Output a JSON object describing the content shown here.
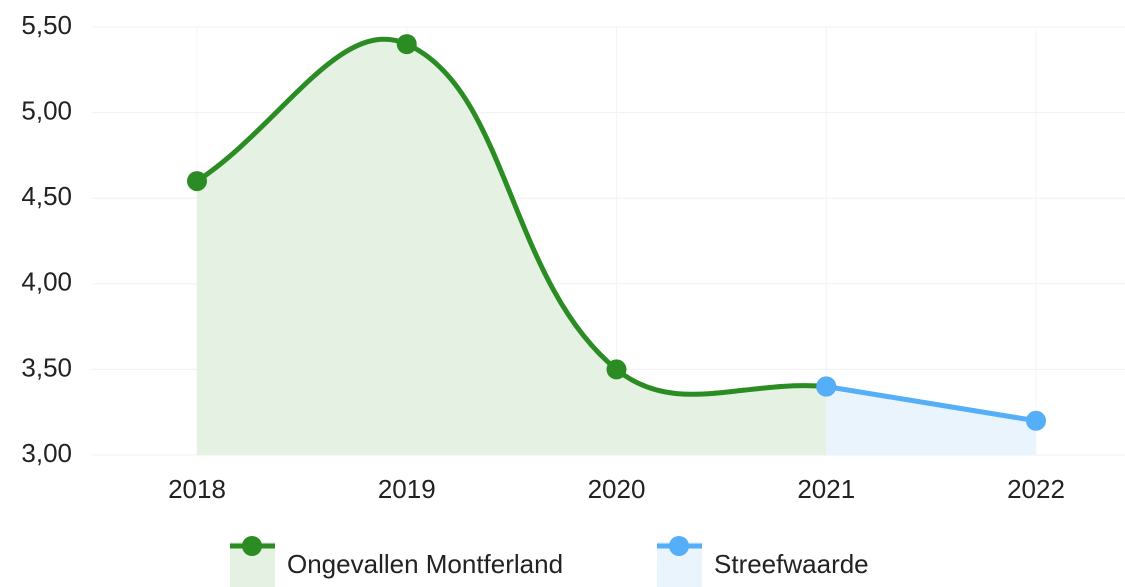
{
  "chart_data": {
    "type": "line",
    "categories": [
      "2018",
      "2019",
      "2020",
      "2021",
      "2022"
    ],
    "series": [
      {
        "name": "Ongevallen Montferland",
        "color": "#2a8c23",
        "fill": "#e5f1e3",
        "values": [
          4.6,
          5.4,
          3.5,
          3.4,
          null
        ]
      },
      {
        "name": "Streefwaarde",
        "color": "#55aef8",
        "fill": "#e9f4fd",
        "values": [
          null,
          null,
          null,
          3.4,
          3.2
        ]
      }
    ],
    "ylim": [
      3,
      5.5
    ],
    "yticks": [
      {
        "value": 3,
        "label": "3,00"
      },
      {
        "value": 3.5,
        "label": "3,50"
      },
      {
        "value": 4,
        "label": "4,00"
      },
      {
        "value": 4.5,
        "label": "4,50"
      },
      {
        "value": 5,
        "label": "5,00"
      },
      {
        "value": 5.5,
        "label": "5,50"
      }
    ],
    "grid": true,
    "legend": "bottom"
  }
}
